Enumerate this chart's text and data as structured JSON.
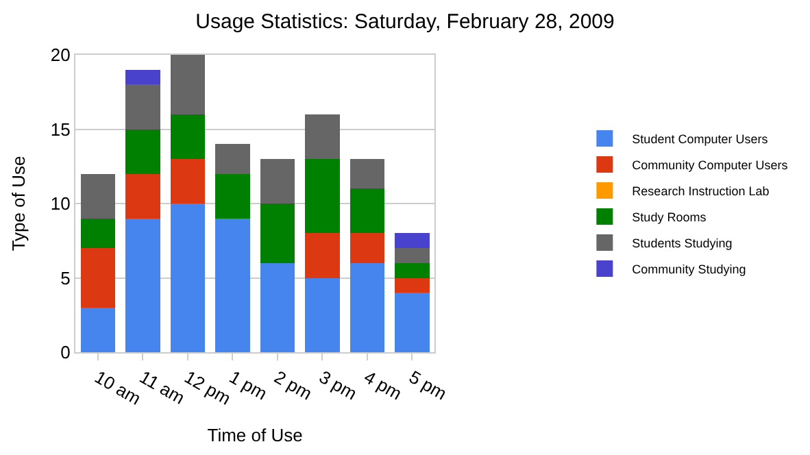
{
  "chart_data": {
    "type": "bar",
    "title": "Usage Statistics: Saturday, February 28, 2009",
    "xlabel": "Time of Use",
    "ylabel": "Type of Use",
    "categories": [
      "10 am",
      "11 am",
      "12 pm",
      "1 pm",
      "2 pm",
      "3 pm",
      "4 pm",
      "5 pm"
    ],
    "stacked": true,
    "ylim": [
      0,
      20
    ],
    "yticks": [
      0,
      5,
      10,
      15,
      20
    ],
    "grid": "y",
    "legend": "right",
    "series": [
      {
        "name": "Student Computer Users",
        "color": "#4684ee",
        "values": [
          3,
          9,
          10,
          9,
          6,
          5,
          6,
          4
        ]
      },
      {
        "name": "Community Computer Users",
        "color": "#dc3912",
        "values": [
          4,
          3,
          3,
          0,
          0,
          3,
          2,
          1
        ]
      },
      {
        "name": "Research Instruction Lab",
        "color": "#ff9900",
        "values": [
          0,
          0,
          0,
          0,
          0,
          0,
          0,
          0
        ]
      },
      {
        "name": "Study Rooms",
        "color": "#008000",
        "values": [
          2,
          3,
          3,
          3,
          4,
          5,
          3,
          1
        ]
      },
      {
        "name": "Students Studying",
        "color": "#666666",
        "values": [
          3,
          3,
          4,
          2,
          3,
          3,
          2,
          1
        ]
      },
      {
        "name": "Community Studying",
        "color": "#4942cc",
        "values": [
          0,
          1,
          0,
          0,
          0,
          0,
          0,
          1
        ]
      }
    ]
  }
}
